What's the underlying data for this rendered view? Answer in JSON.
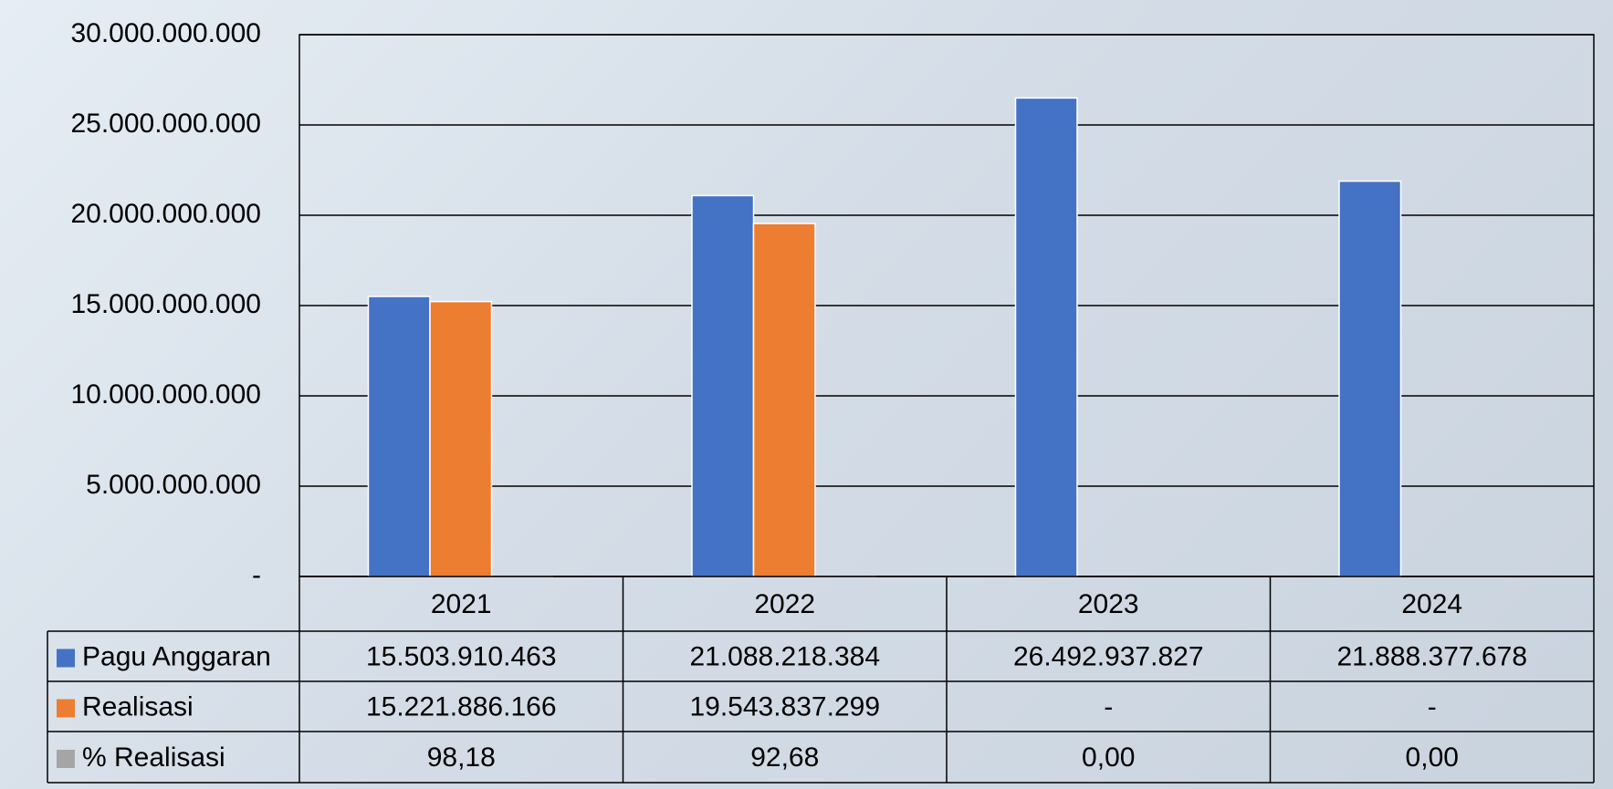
{
  "chart_data": {
    "type": "bar",
    "categories": [
      "2021",
      "2022",
      "2023",
      "2024"
    ],
    "series": [
      {
        "name": "Pagu Anggaran",
        "color": "#4472c4",
        "values": [
          15503910463,
          21088218384,
          26492937827,
          21888377678
        ],
        "value_labels": [
          "15.503.910.463",
          "21.088.218.384",
          "26.492.937.827",
          "21.888.377.678"
        ]
      },
      {
        "name": "Realisasi",
        "color": "#ed7d31",
        "values": [
          15221886166,
          19543837299,
          null,
          null
        ],
        "value_labels": [
          "15.221.886.166",
          "19.543.837.299",
          "-",
          "-"
        ]
      },
      {
        "name": "% Realisasi",
        "color": "#a5a5a5",
        "values": [
          98.18,
          92.68,
          0,
          0
        ],
        "value_labels": [
          "98,18",
          "92,68",
          "0,00",
          "0,00"
        ]
      }
    ],
    "ylim": [
      0,
      30000000000
    ],
    "yticks": [
      {
        "value": 0,
        "label": "-"
      },
      {
        "value": 5000000000,
        "label": "5.000.000.000"
      },
      {
        "value": 10000000000,
        "label": "10.000.000.000"
      },
      {
        "value": 15000000000,
        "label": "15.000.000.000"
      },
      {
        "value": 20000000000,
        "label": "20.000.000.000"
      },
      {
        "value": 25000000000,
        "label": "25.000.000.000"
      },
      {
        "value": 30000000000,
        "label": "30.000.000.000"
      }
    ],
    "grid": true
  }
}
